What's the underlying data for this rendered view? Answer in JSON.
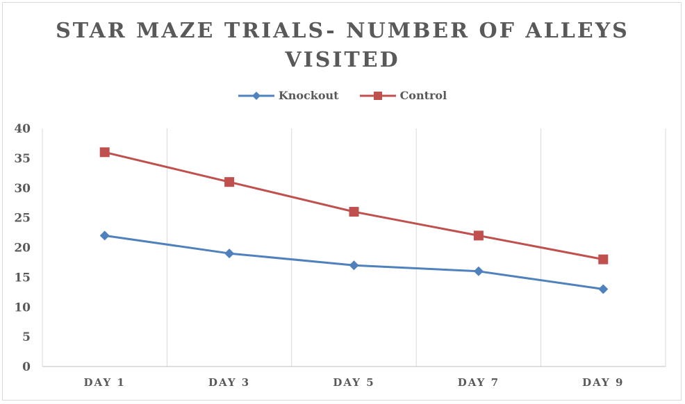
{
  "chart_data": {
    "type": "line",
    "title": "STAR MAZE TRIALS- NUMBER OF ALLEYS VISITED",
    "categories": [
      "DAY 1",
      "DAY 3",
      "DAY 5",
      "DAY 7",
      "DAY 9"
    ],
    "series": [
      {
        "name": "Knockout",
        "values": [
          22,
          19,
          17,
          16,
          13
        ],
        "color": "#4f81bd",
        "marker": "diamond"
      },
      {
        "name": "Control",
        "values": [
          36,
          31,
          26,
          22,
          18
        ],
        "color": "#c0504d",
        "marker": "square"
      }
    ],
    "ylim": [
      0,
      40
    ],
    "yticks": [
      0,
      5,
      10,
      15,
      20,
      25,
      30,
      35,
      40
    ],
    "grid": "vertical",
    "legend_position": "top"
  }
}
